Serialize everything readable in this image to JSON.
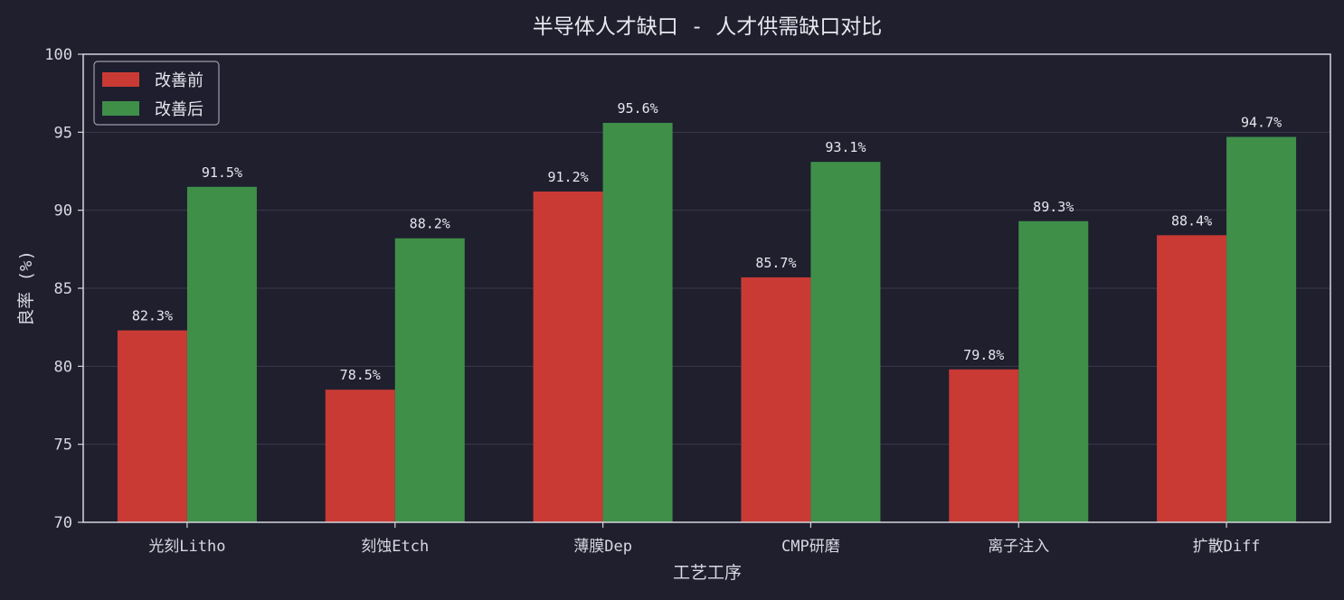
{
  "chart_data": {
    "type": "bar",
    "title": "半导体人才缺口 - 人才供需缺口对比",
    "xlabel": "工艺工序",
    "ylabel": "良率 (%)",
    "ylim": [
      70,
      100
    ],
    "yticks": [
      70,
      75,
      80,
      85,
      90,
      95,
      100
    ],
    "categories": [
      "光刻Litho",
      "刻蚀Etch",
      "薄膜Dep",
      "CMP研磨",
      "离子注入",
      "扩散Diff"
    ],
    "series": [
      {
        "name": "改善前",
        "color": "#c93a35",
        "values": [
          82.3,
          78.5,
          91.2,
          85.7,
          79.8,
          88.4
        ],
        "labels": [
          "82.3%",
          "78.5%",
          "91.2%",
          "85.7%",
          "79.8%",
          "88.4%"
        ]
      },
      {
        "name": "改善后",
        "color": "#3f8f49",
        "values": [
          91.5,
          88.2,
          95.6,
          93.1,
          89.3,
          94.7
        ],
        "labels": [
          "91.5%",
          "88.2%",
          "95.6%",
          "93.1%",
          "89.3%",
          "94.7%"
        ]
      }
    ],
    "grid": true,
    "legend_position": "top-left"
  }
}
